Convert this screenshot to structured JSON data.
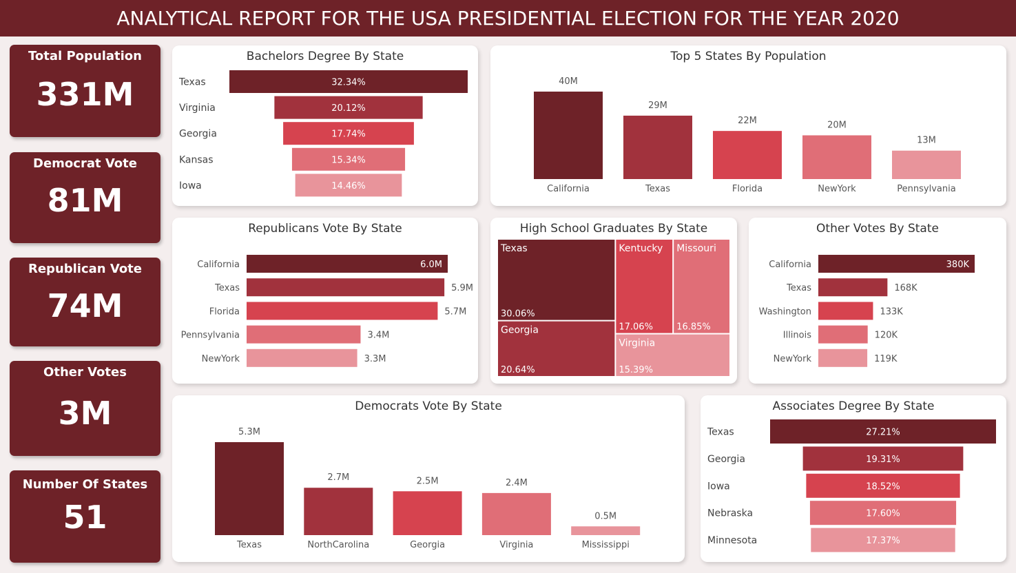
{
  "title": "ANALYTICAL REPORT FOR THE USA PRESIDENTIAL ELECTION FOR THE YEAR 2020",
  "palette": [
    "#6e2228",
    "#a1323d",
    "#d6434f",
    "#e06e77",
    "#e8949b"
  ],
  "kpis": [
    {
      "label": "Total Population",
      "value": "331M"
    },
    {
      "label": "Democrat Vote",
      "value": "81M"
    },
    {
      "label": "Republican Vote",
      "value": "74M"
    },
    {
      "label": "Other Votes",
      "value": "3M"
    },
    {
      "label": "Number Of States",
      "value": "51"
    }
  ],
  "chart_data": [
    {
      "id": "bachelors",
      "type": "funnel",
      "title": "Bachelors Degree By State",
      "categories": [
        "Texas",
        "Virginia",
        "Georgia",
        "Kansas",
        "Iowa"
      ],
      "values": [
        32.34,
        20.12,
        17.74,
        15.34,
        14.46
      ],
      "labels": [
        "32.34%",
        "20.12%",
        "17.74%",
        "15.34%",
        "14.46%"
      ]
    },
    {
      "id": "top5pop",
      "type": "bar",
      "title": "Top 5 States By Population",
      "categories": [
        "California",
        "Texas",
        "Florida",
        "NewYork",
        "Pennsylvania"
      ],
      "values": [
        40,
        29,
        22,
        20,
        13
      ],
      "labels": [
        "40M",
        "29M",
        "22M",
        "20M",
        "13M"
      ]
    },
    {
      "id": "republicans",
      "type": "bar",
      "orientation": "horizontal",
      "title": "Republicans Vote By State",
      "categories": [
        "California",
        "Texas",
        "Florida",
        "Pennsylvania",
        "NewYork"
      ],
      "values": [
        6.0,
        5.9,
        5.7,
        3.4,
        3.3
      ],
      "labels": [
        "6.0M",
        "5.9M",
        "5.7M",
        "3.4M",
        "3.3M"
      ]
    },
    {
      "id": "highschool",
      "type": "treemap",
      "title": "High School Graduates By State",
      "categories": [
        "Texas",
        "Georgia",
        "Kentucky",
        "Missouri",
        "Virginia"
      ],
      "values": [
        30.06,
        20.64,
        17.06,
        16.85,
        15.39
      ],
      "labels": [
        "30.06%",
        "20.64%",
        "17.06%",
        "16.85%",
        "15.39%"
      ]
    },
    {
      "id": "other",
      "type": "bar",
      "orientation": "horizontal",
      "title": "Other Votes By State",
      "categories": [
        "California",
        "Texas",
        "Washington",
        "Illinois",
        "NewYork"
      ],
      "values": [
        380,
        168,
        133,
        120,
        119
      ],
      "labels": [
        "380K",
        "168K",
        "133K",
        "120K",
        "119K"
      ]
    },
    {
      "id": "democrats",
      "type": "bar",
      "title": "Democrats Vote By State",
      "categories": [
        "Texas",
        "NorthCarolina",
        "Georgia",
        "Virginia",
        "Mississippi"
      ],
      "values": [
        5.3,
        2.7,
        2.5,
        2.4,
        0.5
      ],
      "labels": [
        "5.3M",
        "2.7M",
        "2.5M",
        "2.4M",
        "0.5M"
      ]
    },
    {
      "id": "associates",
      "type": "funnel",
      "title": "Associates Degree By State",
      "categories": [
        "Texas",
        "Georgia",
        "Iowa",
        "Nebraska",
        "Minnesota"
      ],
      "values": [
        27.21,
        19.31,
        18.52,
        17.6,
        17.37
      ],
      "labels": [
        "27.21%",
        "19.31%",
        "18.52%",
        "17.60%",
        "17.37%"
      ]
    }
  ]
}
